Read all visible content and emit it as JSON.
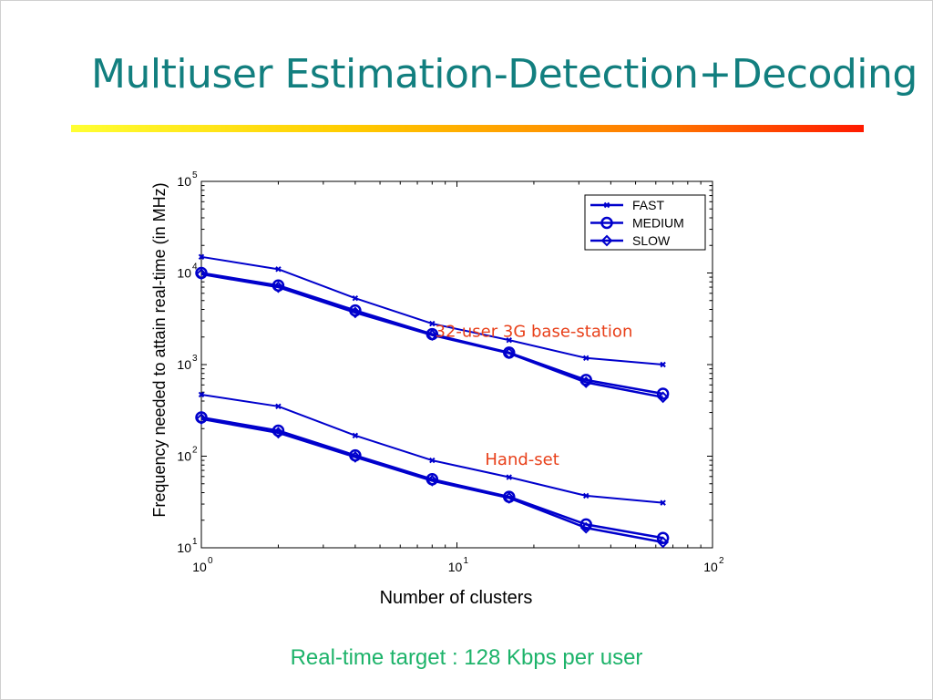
{
  "slide": {
    "title": "Multiuser Estimation-Detection+Decoding",
    "footer": "Real-time target : 128 Kbps per user",
    "colors": {
      "title": "#127f7f",
      "series": "#0000cc",
      "annotation": "#e8401a",
      "footer": "#1db36a"
    }
  },
  "chart_data": {
    "type": "line",
    "xlabel": "Number of clusters",
    "ylabel": "Frequency needed to attain real-time (in MHz)",
    "x_scale": "log",
    "y_scale": "log",
    "xlim": [
      1,
      100
    ],
    "ylim": [
      10,
      100000
    ],
    "x_ticks": [
      {
        "value": 1,
        "base": "10",
        "exp": "0"
      },
      {
        "value": 10,
        "base": "10",
        "exp": "1"
      },
      {
        "value": 100,
        "base": "10",
        "exp": "2"
      }
    ],
    "y_ticks": [
      {
        "value": 10,
        "base": "10",
        "exp": "1"
      },
      {
        "value": 100,
        "base": "10",
        "exp": "2"
      },
      {
        "value": 1000,
        "base": "10",
        "exp": "3"
      },
      {
        "value": 10000,
        "base": "10",
        "exp": "4"
      },
      {
        "value": 100000,
        "base": "10",
        "exp": "5"
      }
    ],
    "x": [
      1,
      2,
      4,
      8,
      16,
      32,
      64
    ],
    "legend": {
      "placement": "top-right",
      "entries": [
        {
          "label": "FAST",
          "marker": "x"
        },
        {
          "label": "MEDIUM",
          "marker": "circle"
        },
        {
          "label": "SLOW",
          "marker": "diamond"
        }
      ]
    },
    "series": [
      {
        "name": "FAST",
        "group": "32-user 3G base-station",
        "marker": "x",
        "values": [
          15000,
          11000,
          5300,
          2800,
          1850,
          1180,
          1000
        ]
      },
      {
        "name": "MEDIUM",
        "group": "32-user 3G base-station",
        "marker": "circle",
        "values": [
          10000,
          7300,
          3900,
          2150,
          1350,
          680,
          480
        ]
      },
      {
        "name": "SLOW",
        "group": "32-user 3G base-station",
        "marker": "diamond",
        "values": [
          9700,
          7000,
          3700,
          2100,
          1330,
          640,
          440
        ]
      },
      {
        "name": "FAST",
        "group": "Hand-set",
        "marker": "x",
        "values": [
          470,
          350,
          168,
          90,
          59,
          37,
          31
        ]
      },
      {
        "name": "MEDIUM",
        "group": "Hand-set",
        "marker": "circle",
        "values": [
          265,
          190,
          102,
          56,
          36,
          18,
          12.8
        ]
      },
      {
        "name": "SLOW",
        "group": "Hand-set",
        "marker": "diamond",
        "values": [
          255,
          180,
          98,
          54,
          35,
          16.5,
          11.5
        ]
      }
    ],
    "annotations": [
      {
        "text": "32-user 3G base-station",
        "x": 20,
        "y": 2000
      },
      {
        "text": "Hand-set",
        "x": 18,
        "y": 80
      }
    ]
  }
}
